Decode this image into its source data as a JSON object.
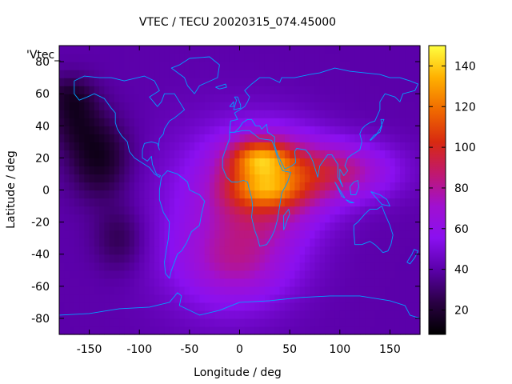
{
  "chart_data": {
    "type": "heatmap",
    "title": "VTEC / TECU 20020315_074.45000",
    "xlabel": "Longitude / deg",
    "ylabel": "Latitude / deg",
    "key_label": "'Vtec_",
    "xlim": [
      -180,
      180
    ],
    "ylim": [
      -90,
      90
    ],
    "xticks": [
      -150,
      -100,
      -50,
      0,
      50,
      100,
      150
    ],
    "yticks": [
      -80,
      -60,
      -40,
      -20,
      0,
      20,
      40,
      60,
      80
    ],
    "colorbar": {
      "min": 8,
      "max": 150,
      "ticks": [
        20,
        40,
        60,
        80,
        100,
        120,
        140
      ]
    },
    "colormap": [
      "#000000",
      "#2a0044",
      "#5a00a8",
      "#8a10f0",
      "#a010d0",
      "#c01870",
      "#d82a10",
      "#f06a00",
      "#ffb000",
      "#ffff40"
    ],
    "coastline_color": "#00a0ff",
    "grid": false,
    "field": {
      "description_cells": "VTEC field, 5x5 deg cells",
      "peaks": [
        {
          "lon": 20,
          "lat": 20,
          "value": 140
        },
        {
          "lon": 40,
          "lat": 20,
          "value": 130
        },
        {
          "lon": 25,
          "lat": 0,
          "value": 110
        },
        {
          "lon": 100,
          "lat": 10,
          "value": 95
        }
      ],
      "background_value": 40,
      "minimum": {
        "lon": -140,
        "lat": 20,
        "value": 10
      }
    }
  }
}
